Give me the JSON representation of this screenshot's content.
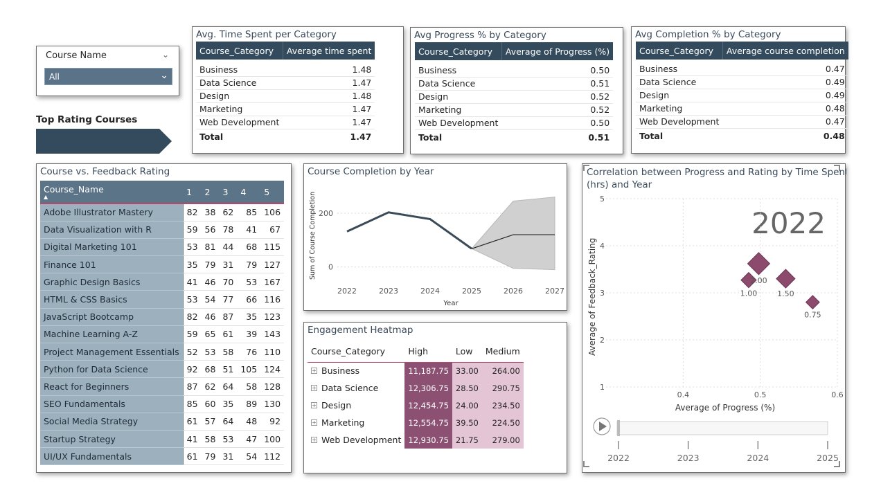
{
  "slicer": {
    "label": "Course Name",
    "value": "All"
  },
  "top_rating": {
    "label": "Top Rating Courses"
  },
  "time_table": {
    "title": "Avg. Time Spent per Category",
    "headers": [
      "Course_Category",
      "Average time spent"
    ],
    "rows": [
      [
        "Business",
        "1.48"
      ],
      [
        "Data Science",
        "1.47"
      ],
      [
        "Design",
        "1.48"
      ],
      [
        "Marketing",
        "1.47"
      ],
      [
        "Web Development",
        "1.47"
      ]
    ],
    "total": [
      "Total",
      "1.47"
    ]
  },
  "progress_table": {
    "title": "Avg Progress % by Category",
    "headers": [
      "Course_Category",
      "Average of Progress (%)"
    ],
    "rows": [
      [
        "Business",
        "0.50"
      ],
      [
        "Data Science",
        "0.51"
      ],
      [
        "Design",
        "0.52"
      ],
      [
        "Marketing",
        "0.52"
      ],
      [
        "Web Development",
        "0.50"
      ]
    ],
    "total": [
      "Total",
      "0.51"
    ]
  },
  "completion_table": {
    "title": "Avg Completion % by Category",
    "headers": [
      "Course_Category",
      "Average course completion"
    ],
    "rows": [
      [
        "Business",
        "0.47"
      ],
      [
        "Data Science",
        "0.49"
      ],
      [
        "Design",
        "0.49"
      ],
      [
        "Marketing",
        "0.48"
      ],
      [
        "Web Development",
        "0.47"
      ]
    ],
    "total": [
      "Total",
      "0.48"
    ]
  },
  "feedback": {
    "title": "Course vs. Feedback Rating",
    "headers": [
      "Course_Name",
      "1",
      "2",
      "3",
      "4",
      "5"
    ],
    "rows": [
      [
        "Adobe Illustrator Mastery",
        "82",
        "38",
        "62",
        "85",
        "106"
      ],
      [
        "Data Visualization with R",
        "59",
        "56",
        "78",
        "41",
        "67"
      ],
      [
        "Digital Marketing 101",
        "53",
        "81",
        "44",
        "68",
        "115"
      ],
      [
        "Finance 101",
        "35",
        "79",
        "31",
        "79",
        "127"
      ],
      [
        "Graphic Design Basics",
        "41",
        "46",
        "70",
        "53",
        "167"
      ],
      [
        "HTML & CSS Basics",
        "53",
        "54",
        "77",
        "66",
        "116"
      ],
      [
        "JavaScript Bootcamp",
        "82",
        "46",
        "87",
        "35",
        "123"
      ],
      [
        "Machine Learning A-Z",
        "59",
        "65",
        "61",
        "39",
        "143"
      ],
      [
        "Project Management Essentials",
        "52",
        "53",
        "58",
        "76",
        "110"
      ],
      [
        "Python for Data Science",
        "92",
        "68",
        "51",
        "105",
        "124"
      ],
      [
        "React for Beginners",
        "87",
        "62",
        "64",
        "58",
        "128"
      ],
      [
        "SEO Fundamentals",
        "85",
        "60",
        "35",
        "89",
        "130"
      ],
      [
        "Social Media Strategy",
        "61",
        "57",
        "64",
        "48",
        "92"
      ],
      [
        "Startup Strategy",
        "41",
        "58",
        "53",
        "47",
        "100"
      ],
      [
        "UI/UX Fundamentals",
        "61",
        "79",
        "31",
        "54",
        "112"
      ]
    ]
  },
  "heatmap": {
    "title": "Engagement Heatmap",
    "headers": [
      "Course_Category",
      "High",
      "Low",
      "Medium"
    ],
    "rows": [
      [
        "Business",
        "11,187.75",
        "33.00",
        "264.00"
      ],
      [
        "Data Science",
        "12,306.75",
        "28.50",
        "290.75"
      ],
      [
        "Design",
        "12,454.75",
        "24.00",
        "234.50"
      ],
      [
        "Marketing",
        "12,554.75",
        "39.50",
        "224.50"
      ],
      [
        "Web Development",
        "12,930.75",
        "21.75",
        "279.00"
      ]
    ],
    "expand_icon": "plus-box-icon"
  },
  "chart_data": [
    {
      "type": "line",
      "title": "Course Completion by Year",
      "xlabel": "Year",
      "ylabel": "Sum of Course Completion",
      "x": [
        "2022",
        "2023",
        "2024",
        "2025",
        "2026",
        "2027"
      ],
      "series": [
        {
          "values": [
            132,
            203,
            178,
            68,
            null,
            null
          ]
        },
        {
          "values": [
            null,
            null,
            null,
            68,
            120,
            120
          ]
        }
      ],
      "forecast_band": {
        "x": [
          "2025",
          "2026",
          "2027"
        ],
        "upper": [
          68,
          245,
          260
        ],
        "lower": [
          68,
          -5,
          -10
        ]
      },
      "ylim": [
        -60,
        290
      ],
      "yticks": [
        0,
        200
      ],
      "colors": {
        "actual": "#3b4a58",
        "forecast": "#222222",
        "band": "#d0d0d0"
      }
    },
    {
      "type": "scatter",
      "title": "Correlation between Progress and Rating by Time Spent (hrs) and Year",
      "xlabel": "Average of Progress (%)",
      "ylabel": "Average of Feedback_Rating",
      "xlim": [
        0.3,
        0.6
      ],
      "ylim": [
        1,
        5
      ],
      "xticks": [
        "0.4",
        "0.5",
        "0.6"
      ],
      "yticks": [
        "1",
        "2",
        "3",
        "4",
        "5"
      ],
      "year_label": "2022",
      "points": [
        {
          "x": 0.485,
          "y": 3.27,
          "label": "1.00",
          "size": 1.0
        },
        {
          "x": 0.498,
          "y": 3.62,
          "label": "2.00",
          "size": 2.0
        },
        {
          "x": 0.533,
          "y": 3.3,
          "label": "1.50",
          "size": 1.5
        },
        {
          "x": 0.568,
          "y": 2.8,
          "label": "0.75",
          "size": 0.75
        }
      ],
      "play_axis": [
        "2022",
        "2023",
        "2024",
        "2025"
      ],
      "colors": {
        "marker": "#8c4a6c"
      }
    }
  ]
}
